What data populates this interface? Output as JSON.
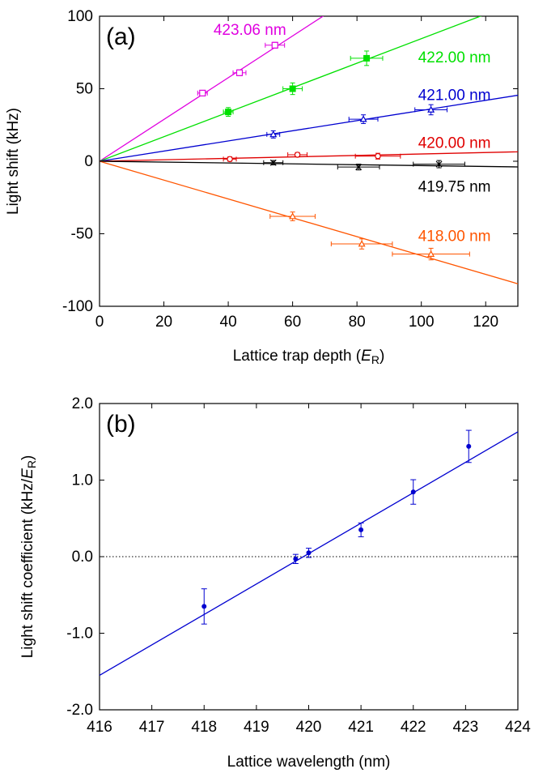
{
  "chart_data": [
    {
      "type": "scatter",
      "panel_label": "(a)",
      "xlabel_pre": "Lattice trap depth (",
      "xlabel_var": "E",
      "xlabel_sub": "R",
      "xlabel_post": ")",
      "ylabel": "Light shift (kHz)",
      "xlim": [
        0,
        130
      ],
      "ylim": [
        -100,
        100
      ],
      "xticks": [
        0,
        20,
        40,
        60,
        80,
        100,
        120
      ],
      "yticks": [
        -100,
        -50,
        0,
        50,
        100
      ],
      "grid": false,
      "series": [
        {
          "name": "423.06 nm",
          "color": "#e000e0",
          "marker": "open-square",
          "slope": 1.44,
          "label_pos": [
            58,
            91
          ],
          "label_anchor": "end",
          "points": [
            {
              "x": 32,
              "y": 47,
              "xerr": 1.5,
              "yerr": 1.5
            },
            {
              "x": 43.5,
              "y": 61,
              "xerr": 2,
              "yerr": 2
            },
            {
              "x": 54.5,
              "y": 80,
              "xerr": 3,
              "yerr": 2
            }
          ]
        },
        {
          "name": "422.00 nm",
          "color": "#00e000",
          "marker": "filled-square",
          "slope": 0.845,
          "label_pos": [
            99,
            72
          ],
          "label_anchor": "start",
          "points": [
            {
              "x": 40,
              "y": 34,
              "xerr": 1.5,
              "yerr": 3
            },
            {
              "x": 60,
              "y": 50,
              "xerr": 3,
              "yerr": 4
            },
            {
              "x": 83,
              "y": 71,
              "xerr": 5,
              "yerr": 5
            }
          ]
        },
        {
          "name": "421.00 nm",
          "color": "#0000d0",
          "marker": "open-triangle",
          "slope": 0.35,
          "label_pos": [
            99,
            46
          ],
          "label_anchor": "start",
          "points": [
            {
              "x": 54,
              "y": 18.5,
              "xerr": 2,
              "yerr": 2.5
            },
            {
              "x": 82,
              "y": 29,
              "xerr": 4.5,
              "yerr": 3
            },
            {
              "x": 103,
              "y": 35.5,
              "xerr": 5,
              "yerr": 3.5
            }
          ]
        },
        {
          "name": "420.00 nm",
          "color": "#e00000",
          "marker": "open-circle",
          "slope": 0.05,
          "label_pos": [
            99,
            13
          ],
          "label_anchor": "start",
          "points": [
            {
              "x": 40.5,
              "y": 1.5,
              "xerr": 2,
              "yerr": 1.5
            },
            {
              "x": 61.5,
              "y": 4.5,
              "xerr": 3,
              "yerr": 1.5
            },
            {
              "x": 86.5,
              "y": 3.5,
              "xerr": 7,
              "yerr": 2
            }
          ]
        },
        {
          "name": "419.75 nm",
          "color": "#000000",
          "marker": "cross",
          "slope": -0.03,
          "label_pos": [
            99,
            -17
          ],
          "label_anchor": "start",
          "points": [
            {
              "x": 54,
              "y": -1,
              "xerr": 3,
              "yerr": 1.5
            },
            {
              "x": 80.5,
              "y": -4,
              "xerr": 6.5,
              "yerr": 2
            },
            {
              "x": 105.5,
              "y": -2,
              "xerr": 8,
              "yerr": 2.5
            }
          ]
        },
        {
          "name": "418.00 nm",
          "color": "#ff5500",
          "marker": "open-triangle",
          "slope": -0.65,
          "label_pos": [
            99,
            -51
          ],
          "label_anchor": "start",
          "points": [
            {
              "x": 60,
              "y": -38,
              "xerr": 7,
              "yerr": 3
            },
            {
              "x": 81.5,
              "y": -57,
              "xerr": 9.5,
              "yerr": 3.5
            },
            {
              "x": 103,
              "y": -64,
              "xerr": 12,
              "yerr": 4
            }
          ]
        }
      ]
    },
    {
      "type": "scatter",
      "panel_label": "(b)",
      "xlabel": "Lattice wavelength (nm)",
      "ylabel_pre": "Light shift coefficient (kHz/",
      "ylabel_var": "E",
      "ylabel_sub": "R",
      "ylabel_post": ")",
      "xlim": [
        416,
        424
      ],
      "ylim": [
        -2.0,
        2.0
      ],
      "xticks": [
        416,
        417,
        418,
        419,
        420,
        421,
        422,
        423,
        424
      ],
      "yticks": [
        -2.0,
        -1.0,
        0.0,
        1.0,
        2.0
      ],
      "ytick_labels": [
        "-2.0",
        "-1.0",
        "0.0",
        "1.0",
        "2.0"
      ],
      "grid": false,
      "zero_line": true,
      "color": "#0000d0",
      "fit_line": {
        "x": [
          416,
          424
        ],
        "y": [
          -1.55,
          1.63
        ]
      },
      "points": [
        {
          "x": 418.0,
          "y": -0.65,
          "yerr": 0.23
        },
        {
          "x": 419.75,
          "y": -0.03,
          "yerr": 0.06
        },
        {
          "x": 420.0,
          "y": 0.05,
          "yerr": 0.06
        },
        {
          "x": 421.0,
          "y": 0.35,
          "yerr": 0.09
        },
        {
          "x": 422.0,
          "y": 0.845,
          "yerr": 0.16
        },
        {
          "x": 423.06,
          "y": 1.44,
          "yerr": 0.21
        }
      ]
    }
  ]
}
